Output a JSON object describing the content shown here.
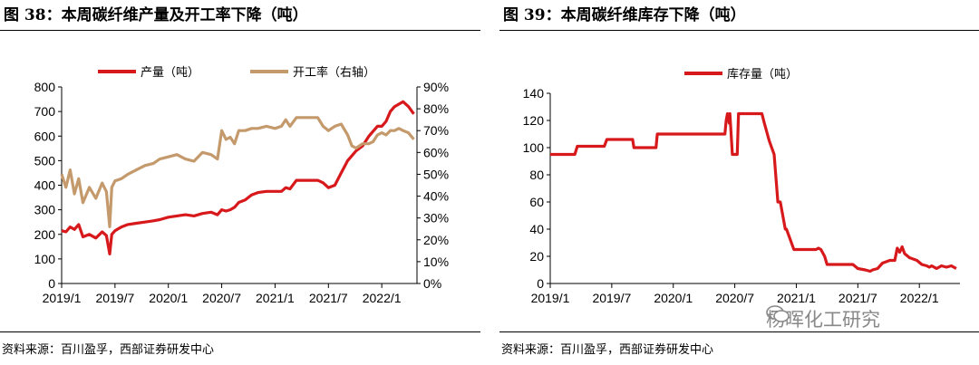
{
  "figures": {
    "left": {
      "title": "图 38：本周碳纤维产量及开工率下降（吨）",
      "source": "资料来源：百川盈孚，西部证券研发中心"
    },
    "right": {
      "title": "图 39：本周碳纤维库存下降（吨）",
      "source": "资料来源：百川盈孚，西部证券研发中心"
    }
  },
  "watermark": {
    "text": "杨晖化工研究",
    "icon": "wechat-icon"
  },
  "colors": {
    "production": "#d7191c",
    "utilization": "#c49a6c",
    "inventory": "#d7191c"
  },
  "chart_data": [
    {
      "type": "line",
      "id": "production-utilization",
      "title": "本周碳纤维产量及开工率下降（吨）",
      "x_range": [
        2019.0,
        2022.33
      ],
      "x_ticks": [
        {
          "label": "2019/1",
          "t": 2019.0
        },
        {
          "label": "2019/7",
          "t": 2019.5
        },
        {
          "label": "2020/1",
          "t": 2020.0
        },
        {
          "label": "2020/7",
          "t": 2020.5
        },
        {
          "label": "2021/1",
          "t": 2021.0
        },
        {
          "label": "2021/7",
          "t": 2021.5
        },
        {
          "label": "2022/1",
          "t": 2022.0
        }
      ],
      "y_left": {
        "range": [
          0,
          800
        ],
        "ticks": [
          0,
          100,
          200,
          300,
          400,
          500,
          600,
          700,
          800
        ]
      },
      "y_right": {
        "range": [
          0,
          90
        ],
        "ticks": [
          "0%",
          "10%",
          "20%",
          "30%",
          "40%",
          "50%",
          "60%",
          "70%",
          "80%",
          "90%"
        ],
        "tick_values": [
          0,
          10,
          20,
          30,
          40,
          50,
          60,
          70,
          80,
          90
        ]
      },
      "legend": {
        "position": "top",
        "items": [
          "产量（吨）",
          "开工率（右轴）"
        ]
      },
      "series": [
        {
          "name": "产量（吨）",
          "axis": "left",
          "x": [
            2019.0,
            2019.04,
            2019.08,
            2019.12,
            2019.16,
            2019.2,
            2019.26,
            2019.32,
            2019.38,
            2019.42,
            2019.45,
            2019.47,
            2019.5,
            2019.56,
            2019.62,
            2019.7,
            2019.78,
            2019.86,
            2019.92,
            2020.0,
            2020.08,
            2020.16,
            2020.24,
            2020.32,
            2020.4,
            2020.46,
            2020.5,
            2020.54,
            2020.58,
            2020.62,
            2020.66,
            2020.72,
            2020.78,
            2020.84,
            2020.92,
            2021.0,
            2021.06,
            2021.1,
            2021.14,
            2021.2,
            2021.3,
            2021.4,
            2021.45,
            2021.5,
            2021.56,
            2021.62,
            2021.68,
            2021.72,
            2021.76,
            2021.82,
            2021.88,
            2021.92,
            2021.96,
            2022.0,
            2022.04,
            2022.08,
            2022.12,
            2022.16,
            2022.2,
            2022.25,
            2022.3
          ],
          "values": [
            215,
            210,
            230,
            220,
            240,
            190,
            200,
            185,
            210,
            195,
            120,
            200,
            215,
            230,
            240,
            245,
            250,
            255,
            260,
            270,
            275,
            280,
            275,
            285,
            290,
            280,
            300,
            295,
            300,
            310,
            330,
            340,
            360,
            370,
            375,
            375,
            375,
            390,
            385,
            420,
            420,
            420,
            410,
            390,
            400,
            450,
            500,
            520,
            540,
            560,
            600,
            620,
            640,
            640,
            660,
            700,
            720,
            730,
            740,
            720,
            690
          ]
        },
        {
          "name": "开工率（右轴）",
          "axis": "right",
          "x": [
            2019.0,
            2019.04,
            2019.08,
            2019.12,
            2019.16,
            2019.2,
            2019.26,
            2019.32,
            2019.38,
            2019.42,
            2019.45,
            2019.47,
            2019.5,
            2019.56,
            2019.62,
            2019.7,
            2019.78,
            2019.86,
            2019.92,
            2020.0,
            2020.08,
            2020.16,
            2020.24,
            2020.32,
            2020.4,
            2020.46,
            2020.5,
            2020.54,
            2020.58,
            2020.62,
            2020.66,
            2020.72,
            2020.78,
            2020.84,
            2020.92,
            2021.0,
            2021.06,
            2021.1,
            2021.14,
            2021.2,
            2021.3,
            2021.4,
            2021.45,
            2021.5,
            2021.56,
            2021.62,
            2021.68,
            2021.72,
            2021.76,
            2021.82,
            2021.88,
            2021.92,
            2021.96,
            2022.0,
            2022.04,
            2022.08,
            2022.12,
            2022.16,
            2022.2,
            2022.25,
            2022.3
          ],
          "values": [
            50,
            44,
            52,
            41,
            48,
            37,
            44,
            39,
            46,
            42,
            26,
            44,
            47,
            48,
            50,
            52,
            54,
            55,
            57,
            58,
            59,
            57,
            56,
            60,
            59,
            57,
            70,
            66,
            67,
            64,
            70,
            70,
            71,
            71,
            72,
            71,
            72,
            75,
            72,
            76,
            76,
            76,
            72,
            70,
            72,
            73,
            68,
            63,
            62,
            64,
            64,
            65,
            68,
            69,
            68,
            70,
            70,
            71,
            70,
            69,
            66
          ]
        }
      ]
    },
    {
      "type": "line",
      "id": "inventory",
      "title": "本周碳纤维库存下降（吨）",
      "x_range": [
        2019.0,
        2022.33
      ],
      "x_ticks": [
        {
          "label": "2019/1",
          "t": 2019.0
        },
        {
          "label": "2019/7",
          "t": 2019.5
        },
        {
          "label": "2020/1",
          "t": 2020.0
        },
        {
          "label": "2020/7",
          "t": 2020.5
        },
        {
          "label": "2021/1",
          "t": 2021.0
        },
        {
          "label": "2021/7",
          "t": 2021.5
        },
        {
          "label": "2022/1",
          "t": 2022.0
        }
      ],
      "y_left": {
        "range": [
          0,
          140
        ],
        "ticks": [
          0,
          20,
          40,
          60,
          80,
          100,
          120,
          140
        ]
      },
      "legend": {
        "position": "top",
        "items": [
          "库存量（吨）"
        ]
      },
      "series": [
        {
          "name": "库存量（吨）",
          "axis": "left",
          "x": [
            2019.0,
            2019.2,
            2019.22,
            2019.44,
            2019.46,
            2019.67,
            2019.68,
            2019.86,
            2019.87,
            2020.42,
            2020.43,
            2020.44,
            2020.455,
            2020.46,
            2020.48,
            2020.52,
            2020.53,
            2020.56,
            2020.72,
            2020.74,
            2020.78,
            2020.82,
            2020.85,
            2020.87,
            2020.91,
            2020.92,
            2020.98,
            2021.0,
            2021.02,
            2021.04,
            2021.05,
            2021.16,
            2021.18,
            2021.2,
            2021.23,
            2021.25,
            2021.46,
            2021.5,
            2021.56,
            2021.6,
            2021.62,
            2021.66,
            2021.7,
            2021.76,
            2021.8,
            2021.82,
            2021.84,
            2021.86,
            2021.88,
            2021.92,
            2021.98,
            2022.02,
            2022.06,
            2022.08,
            2022.1,
            2022.14,
            2022.18,
            2022.22,
            2022.26,
            2022.3
          ],
          "values": [
            95,
            95,
            101,
            101,
            106,
            106,
            100,
            100,
            110,
            110,
            120,
            125,
            118,
            125,
            95,
            95,
            125,
            125,
            125,
            118,
            105,
            95,
            60,
            60,
            40,
            40,
            25,
            25,
            25,
            25,
            25,
            25,
            26,
            25,
            20,
            14,
            14,
            11,
            10,
            9,
            10,
            11,
            15,
            17,
            17,
            26,
            23,
            27,
            22,
            19,
            17,
            14,
            13,
            12,
            13,
            11,
            13,
            12,
            13,
            11
          ]
        }
      ]
    }
  ]
}
